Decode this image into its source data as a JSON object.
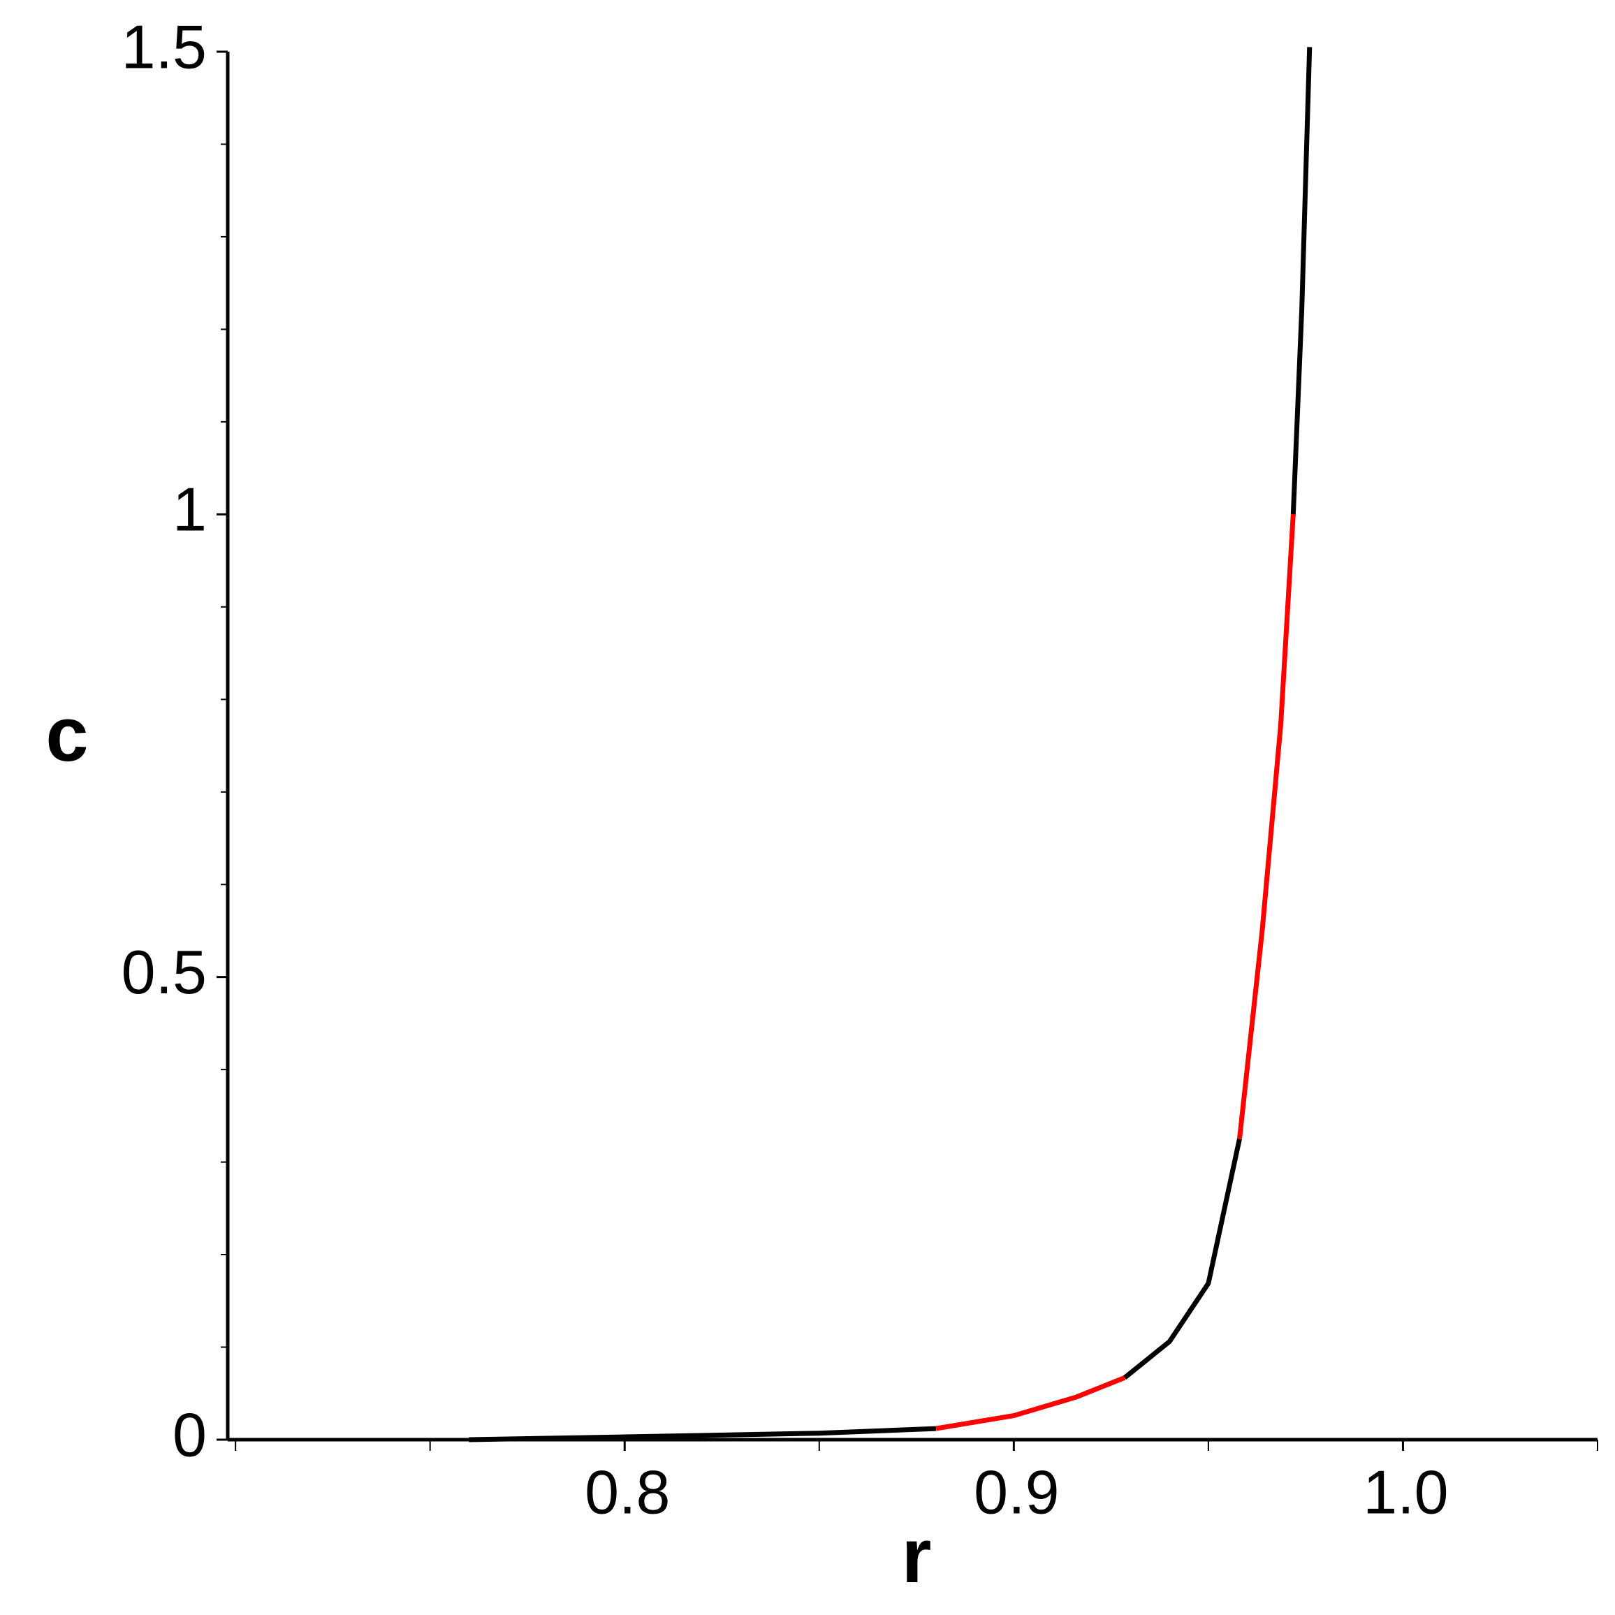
{
  "chart_data": {
    "type": "line",
    "xlabel": "r",
    "ylabel": "c",
    "xlim": [
      0.698,
      1.05
    ],
    "ylim": [
      0,
      1.5
    ],
    "xticks": [
      0.8,
      0.9,
      {
        "value": 1.0,
        "label": "1.0"
      }
    ],
    "yticks": [
      0,
      0.5,
      1,
      1.5
    ],
    "xminorticks": [
      0.7,
      0.75,
      0.85,
      0.95,
      1.05
    ],
    "yminorticks": [
      0.1,
      0.2,
      0.3,
      0.4,
      0.6,
      0.7,
      0.8,
      0.9,
      1.1,
      1.2,
      1.3,
      1.4
    ],
    "series": [
      {
        "color": "#000000",
        "x": [
          0.76,
          0.8,
          0.85,
          0.88
        ],
        "values": [
          0,
          0.003,
          0.007,
          0.012
        ]
      },
      {
        "color": "#ff0000",
        "x": [
          0.88,
          0.9,
          0.916,
          0.9285
        ],
        "values": [
          0.012,
          0.026,
          0.046,
          0.067
        ]
      },
      {
        "color": "#000000",
        "x": [
          0.9285,
          0.94,
          0.95,
          0.958
        ],
        "values": [
          0.067,
          0.106,
          0.169,
          0.325
        ]
      },
      {
        "color": "#ff0000",
        "x": [
          0.958,
          0.9638,
          0.9686,
          0.9718
        ],
        "values": [
          0.325,
          0.549,
          0.773,
          1.0
        ]
      },
      {
        "color": "#000000",
        "x": [
          0.9718,
          0.974,
          0.976
        ],
        "values": [
          1.0,
          1.221,
          1.505
        ]
      }
    ]
  }
}
